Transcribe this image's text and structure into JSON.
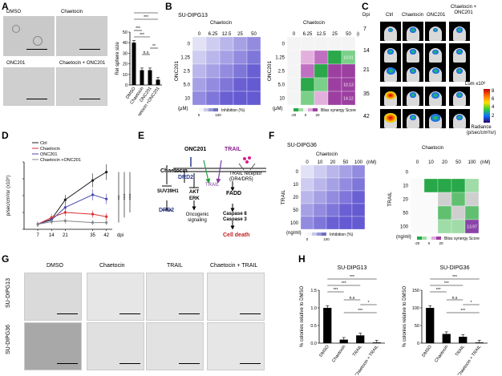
{
  "panels": {
    "A": "A",
    "B": "B",
    "C": "C",
    "D": "D",
    "E": "E",
    "F": "F",
    "G": "G",
    "H": "H"
  },
  "A": {
    "images": [
      "DMSO",
      "Chaetocin",
      "ONC201",
      "Chaetocin + ONC201"
    ],
    "ylabel": "Rel sphere size"
  },
  "B": {
    "title": "SU-DIPG13",
    "top_label": "Chaetocin",
    "top_unit": "(nM)",
    "cols": [
      "0",
      "6.25",
      "12.5",
      "25",
      "50"
    ],
    "rows": [
      "0",
      "1.25",
      "2.5",
      "5.0",
      "10"
    ],
    "side_label": "ONC201",
    "side_unit": "(μM)",
    "inh_legend": "Inhibition (%)",
    "bliss_legend": "Bliss synergy Score",
    "bliss_values": [
      "10.01",
      "10.13",
      "14.12"
    ],
    "heat_scale": [
      "0",
      "100"
    ],
    "bliss_scale": [
      "-20",
      "0",
      "20"
    ]
  },
  "C": {
    "ylabel": "Dpi",
    "cols": [
      "Ctrl",
      "Chaetocin",
      "ONC201",
      "Chaetocin + ONC201"
    ],
    "rows": [
      "7",
      "14",
      "21",
      "35",
      "42"
    ],
    "scale_title": "Lum x10⁶",
    "scale_ticks": [
      "8",
      "6",
      "4",
      "2"
    ],
    "scale_label": "Radiance (p/sec/cm²/sr)"
  },
  "D": {
    "legend": [
      "Ctrl",
      "Chaetocin",
      "ONC201",
      "Chaetocin +ONC201"
    ],
    "ylabel": "p/sec/cm²/sr (x10⁶)",
    "xlabel": "dpi",
    "stars": [
      "***",
      "****",
      "****"
    ],
    "colors": {
      "ctrl": "#222222",
      "chaetocin": "#d93030",
      "onc201": "#4a4ab0",
      "combo": "#888888"
    }
  },
  "E": {
    "chaetocin": "Chaetocin",
    "suv": "SUV39H1",
    "drd2": "DRD2",
    "onc": "ONC201",
    "trail": "TRAIL",
    "akt": "AKT\nERK",
    "onco": "Oncogenic signaling",
    "trail2": "TRAIL",
    "trail_rec": "TRAIL receptor (DR4/DR5)",
    "fadd": "FADD",
    "casp": "Caspase 8 Caspase 3",
    "death": "Cell death"
  },
  "F": {
    "title": "SU-DIPG36",
    "top_label": "Chaetocin",
    "top_unit": "(nM)",
    "cols": [
      "0",
      "10",
      "20",
      "50",
      "100"
    ],
    "rows": [
      "0",
      "10",
      "20",
      "50",
      "100"
    ],
    "side_label": "TRAIL",
    "side_unit": "(ng/ml)",
    "inh_legend": "Inhibition (%)",
    "bliss_legend": "Bliss synergy Score",
    "bliss_values": [
      "13.97"
    ],
    "heat_scale": [
      "0",
      "100"
    ],
    "bliss_scale": [
      "-20",
      "0",
      "20"
    ]
  },
  "G": {
    "cols": [
      "DMSO",
      "Chaetocin",
      "TRAIL",
      "Chaetocin + TRAIL"
    ],
    "rows": [
      "SU-DIPG13",
      "SU-DIPG36"
    ]
  },
  "H": {
    "titles": [
      "SU-DIPG13",
      "SU-DIPG36"
    ],
    "ylabel": "% colonies relative to DMSO",
    "categories": [
      "DMSO",
      "Chaetocin",
      "TRAIL",
      "Chaetocin + TRAIL"
    ]
  },
  "chart_data": [
    {
      "type": "bar",
      "panel": "A",
      "categories": [
        "DMSO",
        "Chaetocin",
        "ONC201",
        "Chaetocin +ONC201"
      ],
      "values": [
        40,
        14,
        14,
        5
      ],
      "ylabel": "Rel sphere size",
      "ylim": [
        0,
        50
      ],
      "yticks": [
        "0",
        "10",
        "20",
        "30",
        "40",
        "50"
      ],
      "annotations": [
        "***",
        "***",
        "n.s",
        "***",
        "**",
        "***"
      ]
    },
    {
      "type": "line",
      "panel": "D",
      "x": [
        7,
        14,
        21,
        35,
        42
      ],
      "xticks": [
        "7",
        "14",
        "21",
        "35",
        "42"
      ],
      "ylim": [
        0,
        8
      ],
      "yticks": [
        "0",
        "2",
        "4",
        "6",
        "8"
      ],
      "xlabel": "dpi",
      "series": [
        {
          "name": "Ctrl",
          "values": [
            0.6,
            1.2,
            3.5,
            5.8,
            6.8
          ]
        },
        {
          "name": "Chaetocin",
          "values": [
            0.6,
            1.4,
            2.0,
            1.8,
            1.5
          ]
        },
        {
          "name": "ONC201",
          "values": [
            0.6,
            1.1,
            2.6,
            4.1,
            3.6
          ]
        },
        {
          "name": "Chaetocin +ONC201",
          "values": [
            0.6,
            0.9,
            1.0,
            0.8,
            0.8
          ]
        }
      ]
    },
    {
      "type": "bar",
      "panel": "H",
      "title": "SU-DIPG13",
      "categories": [
        "DMSO",
        "Chaetocin",
        "TRAIL",
        "Chaetocin + TRAIL"
      ],
      "values": [
        1.0,
        0.1,
        0.22,
        0.02
      ],
      "ylim": [
        0,
        1.5
      ],
      "yticks": [
        "0.0",
        "0.5",
        "1.0",
        "1.5"
      ],
      "ylabel": "% colonies relative to DMSO",
      "annotations": [
        "***",
        "***",
        "***",
        "*",
        "n.s",
        "***"
      ]
    },
    {
      "type": "bar",
      "panel": "H",
      "title": "SU-DIPG36",
      "categories": [
        "DMSO",
        "Chaetocin",
        "TRAIL",
        "Chaetocin + TRAIL"
      ],
      "values": [
        100,
        26,
        18,
        2
      ],
      "ylim": [
        0,
        150
      ],
      "yticks": [
        "0",
        "50",
        "100",
        "150"
      ],
      "ylabel": "% colonies relative to DMSO",
      "annotations": [
        "***",
        "***",
        "***",
        "*",
        "n.s",
        "***"
      ]
    }
  ]
}
